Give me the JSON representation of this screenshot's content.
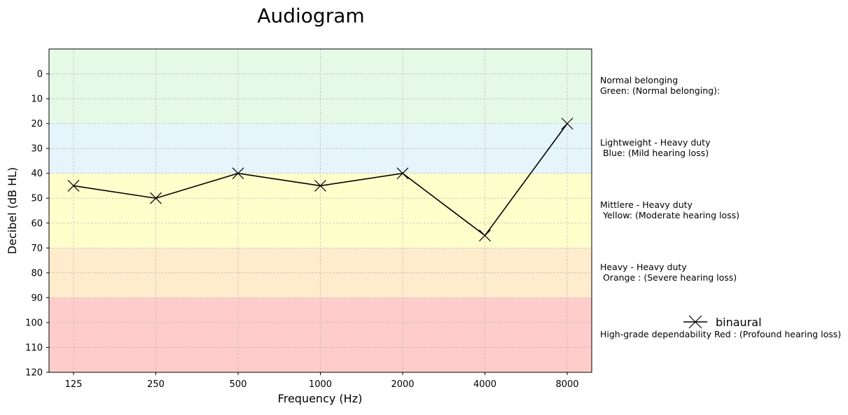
{
  "chart_data": {
    "type": "line",
    "title": "Audiogram",
    "xlabel": "Frequency (Hz)",
    "ylabel": "Decibel (dB HL)",
    "categories": [
      "125",
      "250",
      "500",
      "1000",
      "2000",
      "4000",
      "8000"
    ],
    "ylim": [
      -10,
      120
    ],
    "y_inverted": true,
    "yticks": [
      0,
      10,
      20,
      30,
      40,
      50,
      60,
      70,
      80,
      90,
      100,
      110,
      120
    ],
    "grid": true,
    "series": [
      {
        "name": "binaural",
        "marker": "x",
        "color": "#000000",
        "values": [
          45,
          50,
          40,
          45,
          40,
          65,
          20
        ]
      }
    ],
    "bands": [
      {
        "from": -10,
        "to": 20,
        "color": "#e6f9e6",
        "label": "Normal belonging\nGreen: (Normal belonging):"
      },
      {
        "from": 20,
        "to": 40,
        "color": "#e6f4fc",
        "label": "Lightweight - Heavy duty\n Blue: (Mild hearing loss)"
      },
      {
        "from": 40,
        "to": 70,
        "color": "#ffffcc",
        "label": "Mittlere - Heavy duty\n Yellow: (Moderate hearing loss)"
      },
      {
        "from": 70,
        "to": 90,
        "color": "#ffeccc",
        "label": "Heavy - Heavy duty\n Orange : (Severe hearing loss)"
      },
      {
        "from": 90,
        "to": 120,
        "color": "#ffcccc",
        "label": "High-grade dependability Red : (Profound hearing loss)"
      }
    ],
    "legend": {
      "placement": "right",
      "label": "binaural"
    }
  }
}
